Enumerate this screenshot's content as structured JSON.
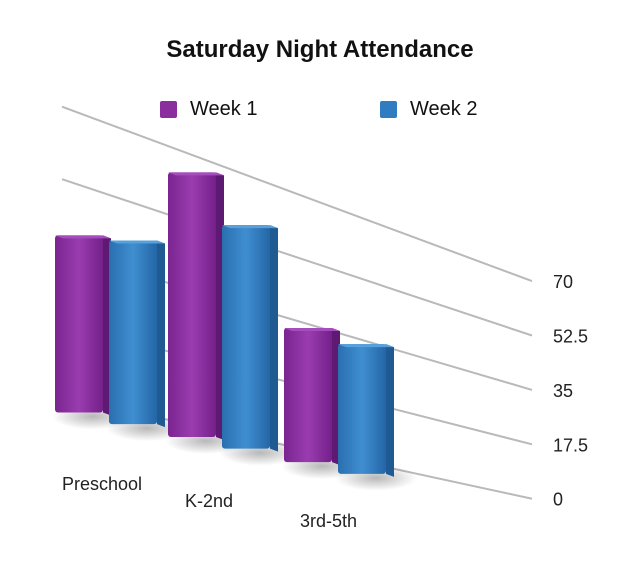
{
  "chart_data": {
    "type": "bar",
    "title": "Saturday Night Attendance",
    "categories": [
      "Preschool",
      "K-2nd",
      "3rd-5th"
    ],
    "series": [
      {
        "name": "Week 1",
        "values": [
          44,
          70,
          38
        ]
      },
      {
        "name": "Week 2",
        "values": [
          47,
          61,
          38
        ]
      }
    ],
    "ylim": [
      0,
      70
    ],
    "yticks": [
      "0",
      "17.5",
      "35",
      "52.5",
      "70"
    ],
    "grid": true,
    "legend_position": "top",
    "colors": {
      "week1": "#8a2e9e",
      "week2": "#2f7cc0"
    }
  }
}
